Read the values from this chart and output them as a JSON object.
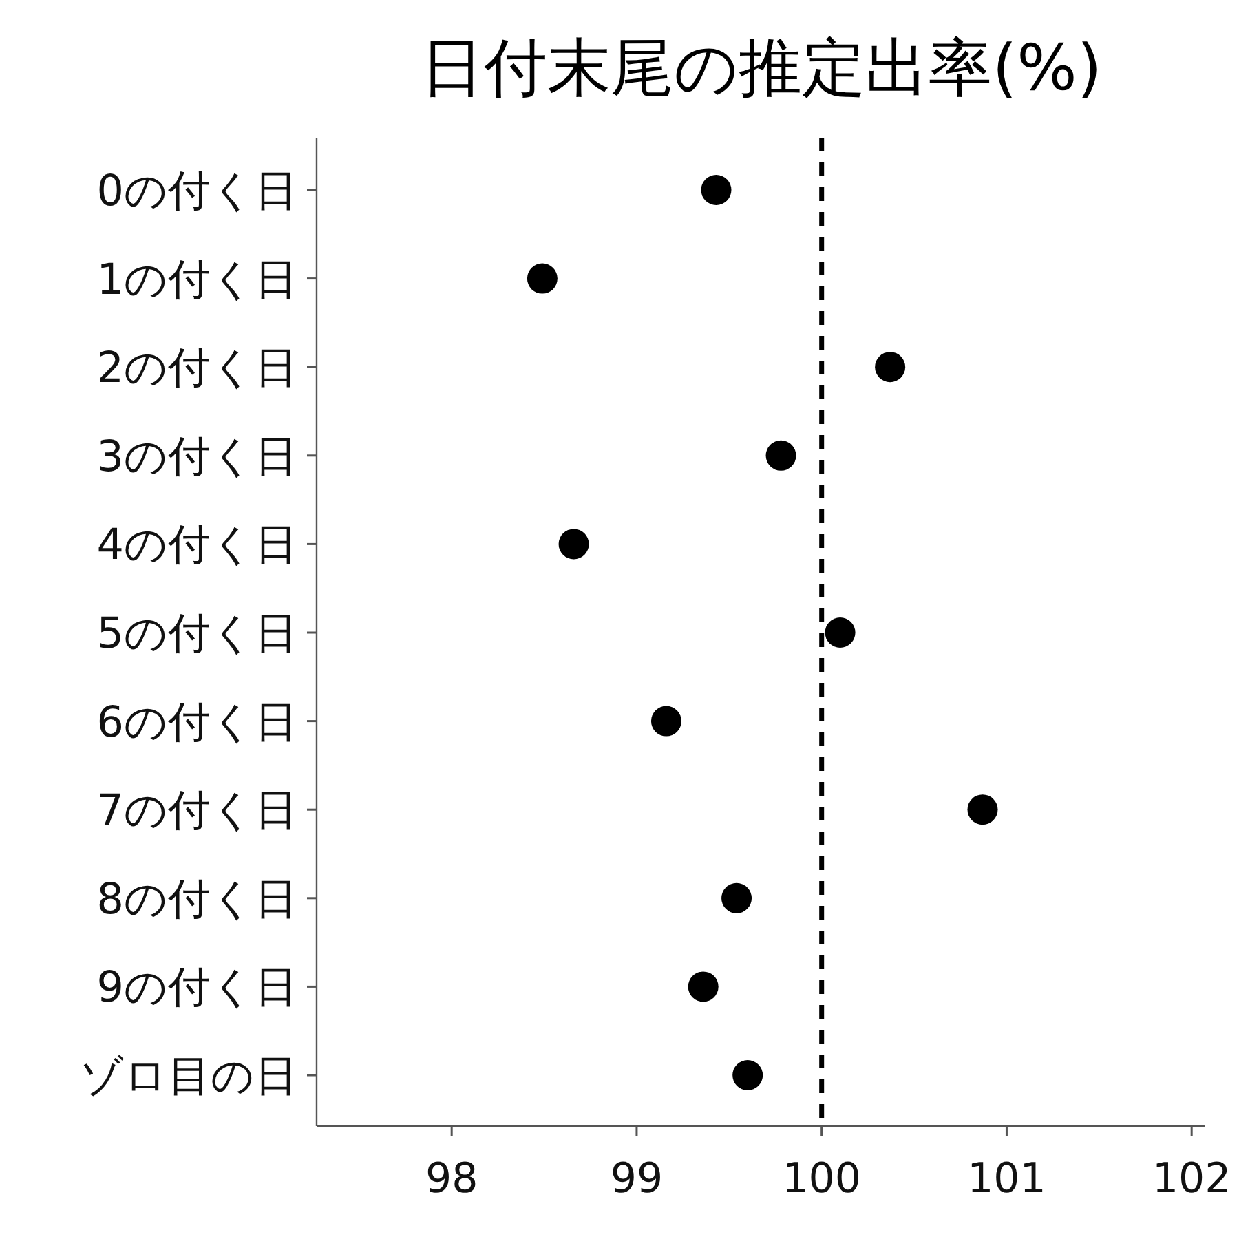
{
  "chart_data": {
    "type": "scatter",
    "orientation": "horizontal",
    "title": "日付末尾の推定出率(%)",
    "categories": [
      "0の付く日",
      "1の付く日",
      "2の付く日",
      "3の付く日",
      "4の付く日",
      "5の付く日",
      "6の付く日",
      "7の付く日",
      "8の付く日",
      "9の付く日",
      "ゾロ目の日"
    ],
    "series": [
      {
        "color": "#000000",
        "values": [
          99.43,
          98.49,
          100.37,
          99.78,
          98.66,
          100.1,
          99.16,
          100.87,
          99.54,
          99.36,
          99.6
        ]
      }
    ],
    "xlim": [
      97.27,
      102.07
    ],
    "xticks": [
      98,
      99,
      100,
      101,
      102
    ],
    "ref_lines": [
      {
        "axis": "x",
        "value": 100,
        "color": "#000000",
        "line_style": "dashed"
      }
    ],
    "marker": "circle",
    "grid": false
  }
}
